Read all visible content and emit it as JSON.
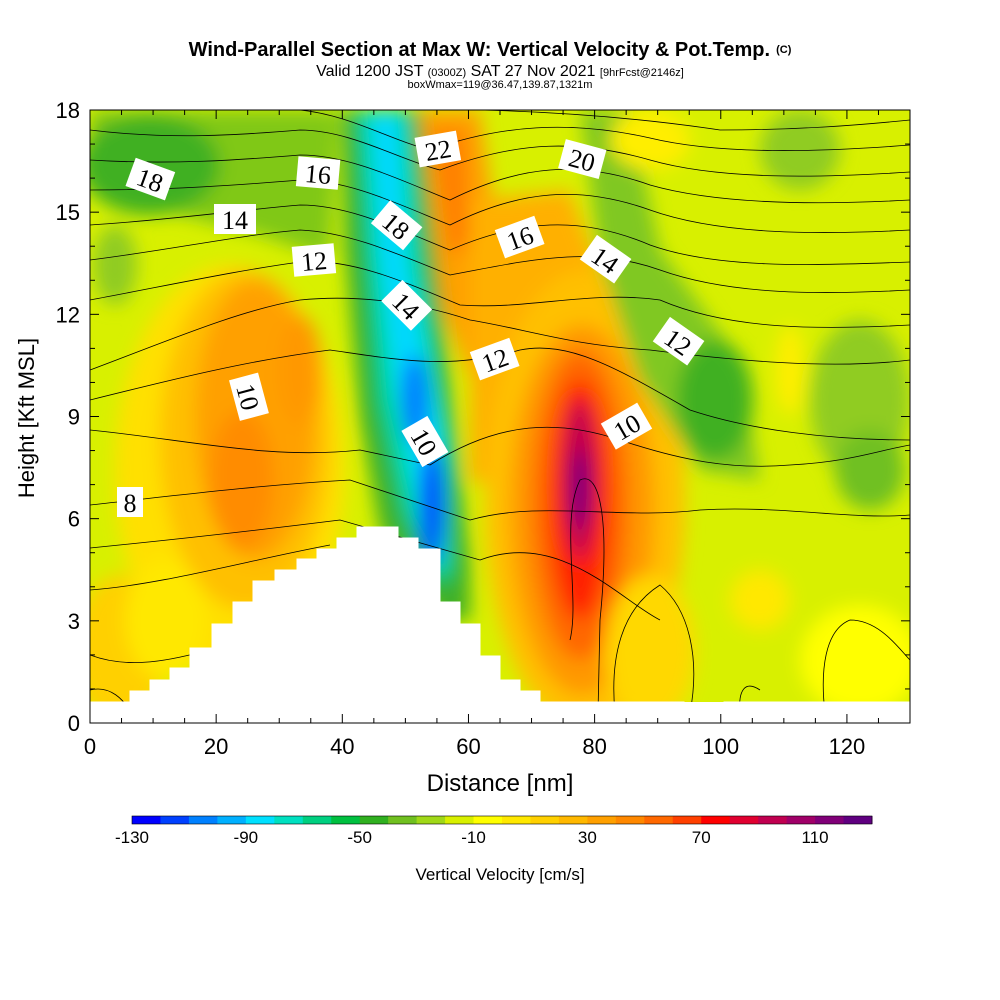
{
  "chart_data": {
    "type": "heatmap",
    "title": "Wind-Parallel Section at Max W: Vertical Velocity & Pot.Temp.",
    "title_mark": "(C)",
    "subtitle_parts": [
      "Valid 1200 JST",
      "(0300Z)",
      "SAT 27 Nov 2021",
      "[9hrFcst@2146z]"
    ],
    "subtitle2": "boxWmax=119@36.47,139.87,1321m",
    "xlabel": "Distance [nm]",
    "ylabel": "Height [Kft MSL]",
    "xlim": [
      0,
      130
    ],
    "ylim": [
      0,
      18
    ],
    "x_ticks": [
      0,
      20,
      40,
      60,
      80,
      100,
      120
    ],
    "y_ticks": [
      0,
      3,
      6,
      9,
      12,
      15,
      18
    ],
    "colorbar": {
      "label": "Vertical Velocity [cm/s]",
      "min": -130,
      "max": 130,
      "tick_values": [
        -130,
        -90,
        -50,
        -10,
        30,
        70,
        110
      ],
      "colors": [
        "#0000ff",
        "#0040ff",
        "#0080ff",
        "#00b0ff",
        "#00e0ff",
        "#00e0c0",
        "#00d080",
        "#00c040",
        "#30b020",
        "#70c020",
        "#a0d818",
        "#d8f000",
        "#ffff00",
        "#ffe800",
        "#ffd000",
        "#ffb800",
        "#ffa000",
        "#ff8800",
        "#ff6800",
        "#ff4000",
        "#ff0000",
        "#e00030",
        "#c00050",
        "#a00068",
        "#800078",
        "#600080"
      ]
    },
    "theta_contour_labels": [
      "8",
      "10",
      "10",
      "10",
      "12",
      "12",
      "12",
      "14",
      "14",
      "14",
      "16",
      "16",
      "18",
      "18",
      "20",
      "22"
    ],
    "features": {
      "downdraft_min_cm_s": -120,
      "updraft_max_cm_s": 119,
      "terrain_peak_nm": 45,
      "terrain_peak_kft": 5.8
    }
  }
}
